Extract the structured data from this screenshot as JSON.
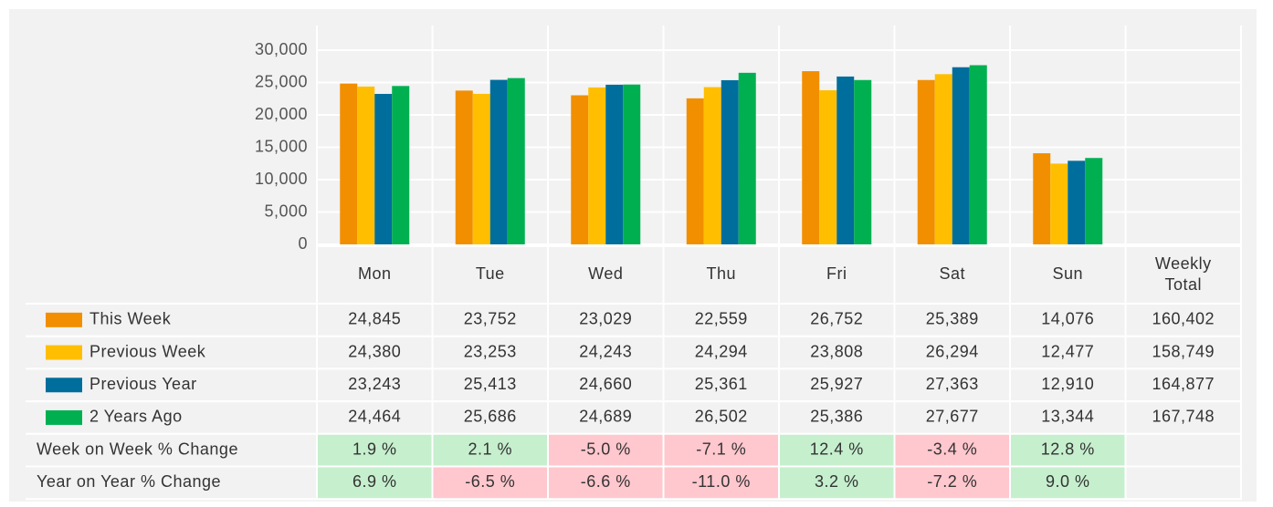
{
  "chart_data": {
    "type": "bar",
    "categories": [
      "Mon",
      "Tue",
      "Wed",
      "Thu",
      "Fri",
      "Sat",
      "Sun"
    ],
    "ylim": [
      0,
      30000
    ],
    "yticks": [
      0,
      {
        "value": 5000,
        "label": "5,000"
      },
      {
        "value": 10000,
        "label": "10,000"
      },
      {
        "value": 15000,
        "label": "15,000"
      },
      {
        "value": 20000,
        "label": "20,000"
      },
      {
        "value": 25000,
        "label": "25,000"
      },
      {
        "value": 30000,
        "label": "30,000"
      }
    ],
    "grid": true,
    "total_header": "Weekly Total",
    "series": [
      {
        "name": "This Week",
        "color": "#f18f00",
        "values": [
          24845,
          23752,
          23029,
          22559,
          26752,
          25389,
          14076
        ],
        "value_labels": [
          "24,845",
          "23,752",
          "23,029",
          "22,559",
          "26,752",
          "25,389",
          "14,076"
        ],
        "total": 160402,
        "total_label": "160,402"
      },
      {
        "name": "Previous Week",
        "color": "#ffbf00",
        "values": [
          24380,
          23253,
          24243,
          24294,
          23808,
          26294,
          12477
        ],
        "value_labels": [
          "24,380",
          "23,253",
          "24,243",
          "24,294",
          "23,808",
          "26,294",
          "12,477"
        ],
        "total": 158749,
        "total_label": "158,749"
      },
      {
        "name": "Previous Year",
        "color": "#006e9c",
        "values": [
          23243,
          25413,
          24660,
          25361,
          25927,
          27363,
          12910
        ],
        "value_labels": [
          "23,243",
          "25,413",
          "24,660",
          "25,361",
          "25,927",
          "27,363",
          "12,910"
        ],
        "total": 164877,
        "total_label": "164,877"
      },
      {
        "name": "2 Years Ago",
        "color": "#00b050",
        "values": [
          24464,
          25686,
          24689,
          26502,
          25386,
          27677,
          13344
        ],
        "value_labels": [
          "24,464",
          "25,686",
          "24,689",
          "26,502",
          "25,386",
          "27,677",
          "13,344"
        ],
        "total": 167748,
        "total_label": "167,748"
      }
    ],
    "change_rows": [
      {
        "name": "Week on Week % Change",
        "values": [
          1.9,
          2.1,
          -5.0,
          -7.1,
          12.4,
          -3.4,
          12.8
        ],
        "value_labels": [
          "1.9 %",
          "2.1 %",
          "-5.0 %",
          "-7.1 %",
          "12.4 %",
          "-3.4 %",
          "12.8 %"
        ]
      },
      {
        "name": "Year on Year % Change",
        "values": [
          6.9,
          -6.5,
          -6.6,
          -11.0,
          3.2,
          -7.2,
          9.0
        ],
        "value_labels": [
          "6.9 %",
          "-6.5 %",
          "-6.6 %",
          "-11.0 %",
          "3.2 %",
          "-7.2 %",
          "9.0 %"
        ]
      }
    ],
    "positive_color": "#c6efce",
    "negative_color": "#ffc7ce"
  }
}
